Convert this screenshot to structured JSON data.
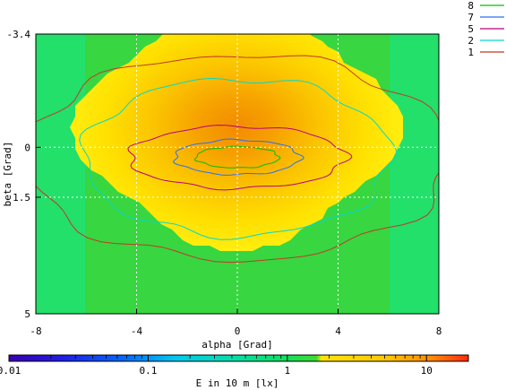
{
  "chart_data": [
    {
      "type": "heatmap",
      "title": "",
      "xlabel": "alpha [Grad]",
      "ylabel": "beta [Grad]",
      "xlim": [
        -8,
        8
      ],
      "ylim": [
        -3.4,
        5
      ],
      "y_inverted": true,
      "x_ticks": [
        -8,
        -4,
        0,
        4,
        8
      ],
      "y_ticks": [
        -3.4,
        0,
        1.5,
        5
      ],
      "grid": true,
      "legend_position": "top-right",
      "peak": {
        "x": 0,
        "y": 0.3,
        "value": 20
      },
      "contours": [
        {
          "name": "8",
          "color": "#00c000",
          "rx": 1.65,
          "ry": 0.58
        },
        {
          "name": "7",
          "color": "#2a6ff2",
          "rx": 2.5,
          "ry": 0.95
        },
        {
          "name": "5",
          "color": "#b8007a",
          "rx": 4.3,
          "ry": 1.7
        },
        {
          "name": "2",
          "color": "#00d9cc",
          "rx": 6.1,
          "ry": 4.3
        },
        {
          "name": "1",
          "color": "#c0392b",
          "rx": 8.4,
          "ry": 5.6
        }
      ]
    },
    {
      "type": "heatmap",
      "xlabel": "E in 10 m [lx]",
      "scale": "log",
      "range": [
        0.01,
        20
      ],
      "ticks": [
        {
          "value": 0.01,
          "label": "0.01"
        },
        {
          "value": 0.1,
          "label": "0.1"
        },
        {
          "value": 1,
          "label": "1"
        },
        {
          "value": 10,
          "label": "10"
        }
      ]
    }
  ]
}
